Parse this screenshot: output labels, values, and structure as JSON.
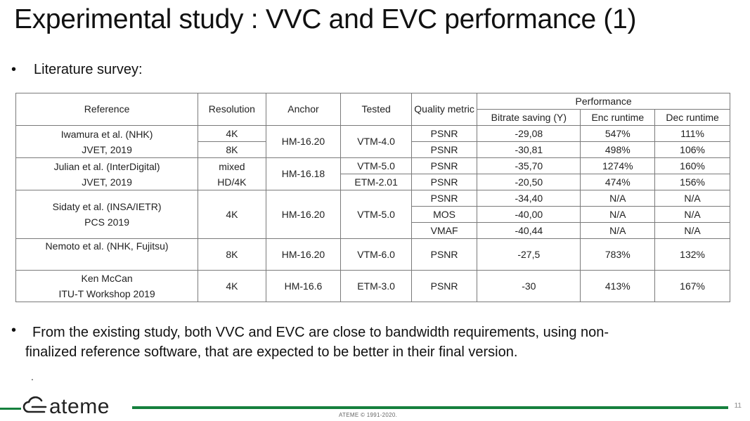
{
  "slide": {
    "title": "Experimental study : VVC and EVC performance (1)",
    "bullet_symbol": "•",
    "bullet1": "Literature survey:",
    "bullet2_line1": "From the existing study, both VVC and EVC are close to bandwidth requirements, using non-",
    "bullet2_line2": "finalized reference software, that are expected to be better in their final version.",
    "stray_mark": "."
  },
  "table": {
    "headers": {
      "reference": "Reference",
      "resolution": "Resolution",
      "anchor": "Anchor",
      "tested": "Tested",
      "quality_line1": "Quality",
      "quality_line2": "metric",
      "performance": "Performance",
      "bitrate": "Bitrate saving (Y)",
      "enc": "Enc runtime",
      "dec": "Dec runtime"
    },
    "groups": {
      "iwamura": {
        "ref_line1": "Iwamura et al. (NHK)",
        "ref_line2": "JVET, 2019",
        "anchor": "HM-16.20",
        "tested": "VTM-4.0",
        "rows": [
          {
            "resolution": "4K",
            "metric": "PSNR",
            "bitrate": "-29,08",
            "enc": "547%",
            "dec": "111%"
          },
          {
            "resolution": "8K",
            "metric": "PSNR",
            "bitrate": "-30,81",
            "enc": "498%",
            "dec": "106%"
          }
        ]
      },
      "julian": {
        "ref_line1": "Julian et al. (InterDigital)",
        "ref_line2": "JVET, 2019",
        "res_line1": "mixed",
        "res_line2": "HD/4K",
        "anchor": "HM-16.18",
        "rows": [
          {
            "tested": "VTM-5.0",
            "metric": "PSNR",
            "bitrate": "-35,70",
            "enc": "1274%",
            "dec": "160%"
          },
          {
            "tested": "ETM-2.01",
            "metric": "PSNR",
            "bitrate": "-20,50",
            "enc": "474%",
            "dec": "156%"
          }
        ]
      },
      "sidaty": {
        "ref_line1": "Sidaty et al. (INSA/IETR)",
        "ref_line2": "PCS 2019",
        "resolution": "4K",
        "anchor": "HM-16.20",
        "tested": "VTM-5.0",
        "rows": [
          {
            "metric": "PSNR",
            "bitrate": "-34,40",
            "enc": "N/A",
            "dec": "N/A"
          },
          {
            "metric": "MOS",
            "bitrate": "-40,00",
            "enc": "N/A",
            "dec": "N/A"
          },
          {
            "metric": "VMAF",
            "bitrate": "-40,44",
            "enc": "N/A",
            "dec": "N/A"
          }
        ]
      },
      "nemoto": {
        "reference": "Nemoto et al. (NHK, Fujitsu)",
        "resolution": "8K",
        "anchor": "HM-16.20",
        "tested": "VTM-6.0",
        "metric": "PSNR",
        "bitrate": "-27,5",
        "enc": "783%",
        "dec": "132%"
      },
      "mccan": {
        "ref_line1": "Ken McCan",
        "ref_line2": "ITU-T Workshop 2019",
        "resolution": "4K",
        "anchor": "HM-16.6",
        "tested": "ETM-3.0",
        "metric": "PSNR",
        "bitrate": "-30",
        "enc": "413%",
        "dec": "167%"
      }
    }
  },
  "footer": {
    "logo_text": "ateme",
    "copyright": "ATEME © 1991-2020.",
    "page_number": "11",
    "accent_color": "#15803d"
  },
  "icons": {
    "logo": "cloud-logo-icon"
  }
}
